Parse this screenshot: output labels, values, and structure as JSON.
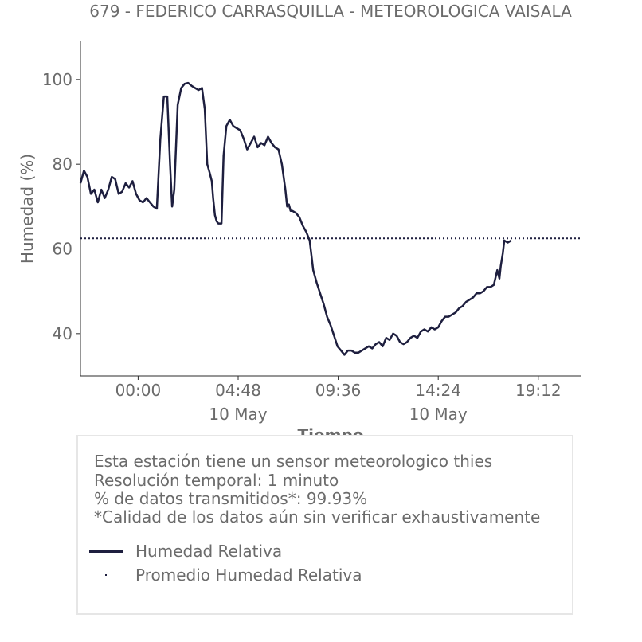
{
  "colors": {
    "series": "#1e1f3f",
    "text": "#6b6b6b",
    "border": "#e6e6e6"
  },
  "chart_data": {
    "type": "line",
    "title": "679 - FEDERICO CARRASQUILLA - METEOROLOGICA VAISALA",
    "xlabel": "Tiempo",
    "ylabel": "Humedad (%)",
    "xlim": [
      "09 May 21:14",
      "10 May 21:14"
    ],
    "ylim": [
      30,
      109
    ],
    "x_ticks": [
      {
        "time": "00:00",
        "date": ""
      },
      {
        "time": "04:48",
        "date": "10 May"
      },
      {
        "time": "09:36",
        "date": ""
      },
      {
        "time": "14:24",
        "date": "10 May"
      },
      {
        "time": "19:12",
        "date": ""
      }
    ],
    "y_ticks": [
      40,
      60,
      80,
      100
    ],
    "grid": false,
    "series": [
      {
        "name": "Humedad Relativa",
        "style": "solid",
        "points": [
          [
            "21:14",
            75.5
          ],
          [
            "21:24",
            78.5
          ],
          [
            "21:34",
            77
          ],
          [
            "21:44",
            73
          ],
          [
            "21:54",
            74
          ],
          [
            "22:04",
            71
          ],
          [
            "22:14",
            74
          ],
          [
            "22:24",
            72
          ],
          [
            "22:34",
            74
          ],
          [
            "22:44",
            77
          ],
          [
            "22:54",
            76.5
          ],
          [
            "23:04",
            73
          ],
          [
            "23:14",
            73.5
          ],
          [
            "23:24",
            75.5
          ],
          [
            "23:34",
            74.5
          ],
          [
            "23:44",
            76
          ],
          [
            "23:54",
            73
          ],
          [
            "00:04",
            71.5
          ],
          [
            "00:14",
            71
          ],
          [
            "00:24",
            72
          ],
          [
            "00:34",
            71
          ],
          [
            "00:44",
            70
          ],
          [
            "00:54",
            69.5
          ],
          [
            "01:04",
            86
          ],
          [
            "01:14",
            96
          ],
          [
            "01:24",
            96
          ],
          [
            "01:32",
            80
          ],
          [
            "01:38",
            70
          ],
          [
            "01:44",
            74
          ],
          [
            "01:54",
            94
          ],
          [
            "02:04",
            98
          ],
          [
            "02:14",
            99
          ],
          [
            "02:24",
            99.2
          ],
          [
            "02:34",
            98.5
          ],
          [
            "02:44",
            98
          ],
          [
            "02:54",
            97.5
          ],
          [
            "03:04",
            98
          ],
          [
            "03:12",
            93
          ],
          [
            "03:19",
            80
          ],
          [
            "03:26",
            78
          ],
          [
            "03:32",
            76
          ],
          [
            "03:36",
            72
          ],
          [
            "03:41",
            68
          ],
          [
            "03:46",
            66.5
          ],
          [
            "03:51",
            66
          ],
          [
            "03:56",
            66
          ],
          [
            "04:00",
            66
          ],
          [
            "04:06",
            82
          ],
          [
            "04:14",
            89
          ],
          [
            "04:24",
            90.5
          ],
          [
            "04:34",
            89
          ],
          [
            "04:44",
            88.5
          ],
          [
            "04:54",
            88
          ],
          [
            "05:04",
            86
          ],
          [
            "05:14",
            83.5
          ],
          [
            "05:24",
            85
          ],
          [
            "05:34",
            86.5
          ],
          [
            "05:44",
            84
          ],
          [
            "05:54",
            85
          ],
          [
            "06:04",
            84.5
          ],
          [
            "06:14",
            86.5
          ],
          [
            "06:24",
            85
          ],
          [
            "06:34",
            84
          ],
          [
            "06:44",
            83.5
          ],
          [
            "06:54",
            80
          ],
          [
            "07:04",
            74
          ],
          [
            "07:09",
            70
          ],
          [
            "07:14",
            70.5
          ],
          [
            "07:19",
            69
          ],
          [
            "07:24",
            69
          ],
          [
            "07:34",
            68.5
          ],
          [
            "07:44",
            67.5
          ],
          [
            "07:54",
            65.5
          ],
          [
            "08:04",
            64
          ],
          [
            "08:14",
            62
          ],
          [
            "08:24",
            55
          ],
          [
            "08:34",
            52
          ],
          [
            "08:44",
            49.5
          ],
          [
            "08:54",
            47
          ],
          [
            "09:04",
            44
          ],
          [
            "09:14",
            42
          ],
          [
            "09:24",
            39.5
          ],
          [
            "09:34",
            37
          ],
          [
            "09:44",
            36
          ],
          [
            "09:54",
            35
          ],
          [
            "10:04",
            36
          ],
          [
            "10:14",
            36
          ],
          [
            "10:24",
            35.5
          ],
          [
            "10:34",
            35.5
          ],
          [
            "10:44",
            36
          ],
          [
            "10:54",
            36.5
          ],
          [
            "11:04",
            37
          ],
          [
            "11:14",
            36.5
          ],
          [
            "11:24",
            37.5
          ],
          [
            "11:34",
            38
          ],
          [
            "11:44",
            37
          ],
          [
            "11:54",
            39
          ],
          [
            "12:04",
            38.5
          ],
          [
            "12:14",
            40
          ],
          [
            "12:24",
            39.5
          ],
          [
            "12:34",
            38
          ],
          [
            "12:44",
            37.5
          ],
          [
            "12:54",
            38
          ],
          [
            "13:04",
            39
          ],
          [
            "13:14",
            39.5
          ],
          [
            "13:24",
            39
          ],
          [
            "13:34",
            40.5
          ],
          [
            "13:44",
            41
          ],
          [
            "13:54",
            40.5
          ],
          [
            "14:04",
            41.5
          ],
          [
            "14:14",
            41
          ],
          [
            "14:24",
            41.5
          ],
          [
            "14:34",
            43
          ],
          [
            "14:44",
            44
          ],
          [
            "14:54",
            44
          ],
          [
            "15:04",
            44.5
          ],
          [
            "15:14",
            45
          ],
          [
            "15:24",
            46
          ],
          [
            "15:34",
            46.5
          ],
          [
            "15:44",
            47.5
          ],
          [
            "15:54",
            48
          ],
          [
            "16:04",
            48.5
          ],
          [
            "16:14",
            49.5
          ],
          [
            "16:24",
            49.5
          ],
          [
            "16:34",
            50
          ],
          [
            "16:44",
            51
          ],
          [
            "16:54",
            51
          ],
          [
            "17:04",
            51.5
          ],
          [
            "17:14",
            55
          ],
          [
            "17:20",
            53
          ],
          [
            "17:24",
            56
          ],
          [
            "17:30",
            59
          ],
          [
            "17:34",
            62
          ],
          [
            "17:44",
            61.5
          ],
          [
            "17:54",
            62
          ]
        ]
      },
      {
        "name": "Promedio Humedad Relativa",
        "style": "dotted",
        "value": 62.5
      }
    ]
  },
  "info": {
    "line1": "Esta estación tiene un sensor meteorologico thies",
    "line2": "Resolución temporal: 1 minuto",
    "line3": "% de datos transmitidos*: 99.93%",
    "line4": "*Calidad de los datos aún sin verificar exhaustivamente"
  }
}
